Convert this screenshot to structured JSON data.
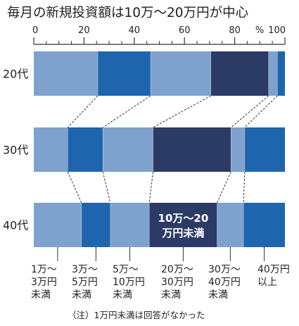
{
  "chart_data": {
    "type": "bar",
    "orientation": "horizontal",
    "stacked": true,
    "title": "毎月の新規投資額は10万～20万円が中心",
    "x_ticks": [
      "0",
      "20",
      "40",
      "60",
      "80",
      "100"
    ],
    "x_unit": "%",
    "xlim": [
      0,
      100
    ],
    "categories": [
      "20代",
      "30代",
      "40代"
    ],
    "series": [
      {
        "name": "1万～3万円未満",
        "values": [
          25.5,
          13.5,
          19.0
        ]
      },
      {
        "name": "3万～5万円未満",
        "values": [
          21.0,
          14.0,
          11.5
        ]
      },
      {
        "name": "5万～10万円未満",
        "values": [
          24.0,
          20.0,
          15.5
        ]
      },
      {
        "name": "20万～30万円未満",
        "values": [
          23.0,
          31.0,
          27.0
        ]
      },
      {
        "name": "30万～40万円未満",
        "values": [
          3.5,
          5.5,
          10.5
        ]
      },
      {
        "name": "40万円以上",
        "values": [
          3.0,
          16.0,
          16.5
        ]
      }
    ],
    "colors": [
      "#7ea2cd",
      "#1f65ad",
      "#7ea2cd",
      "#2c3a66",
      "#7ea2cd",
      "#1f65ad"
    ],
    "annotation": {
      "lines": [
        "10万～20",
        "万円未満"
      ],
      "row": 2,
      "segment": 3
    },
    "legend_labels": [
      [
        "1万～",
        "3万円",
        "未満"
      ],
      [
        "3万～",
        "5万円",
        "未満"
      ],
      [
        "5万～",
        "10万円",
        "未満"
      ],
      [
        "20万～",
        "30万円",
        "未満"
      ],
      [
        "30万～",
        "40万円",
        "未満"
      ],
      [
        "40万円",
        "以上"
      ]
    ],
    "note": "（注）1万円未満は回答がなかった"
  }
}
